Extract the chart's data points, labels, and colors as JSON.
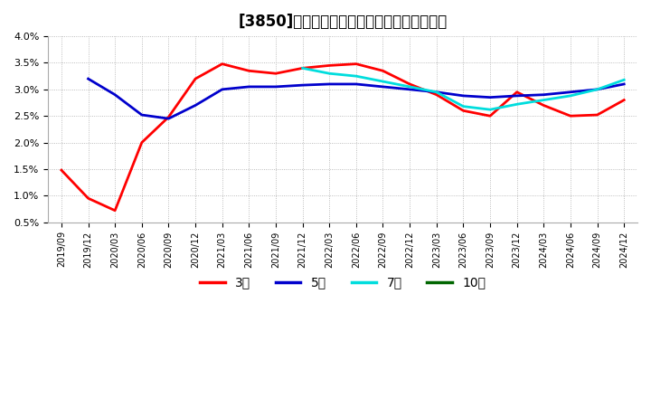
{
  "title": "[3850]　経常利益マージンの標準偏差の推移",
  "ylim": [
    0.005,
    0.04
  ],
  "yticks": [
    0.005,
    0.01,
    0.015,
    0.02,
    0.025,
    0.03,
    0.035,
    0.04
  ],
  "ytick_labels": [
    "0.5%",
    "1.0%",
    "1.5%",
    "2.0%",
    "2.5%",
    "3.0%",
    "3.5%",
    "4.0%"
  ],
  "x_labels": [
    "2019/09",
    "2019/12",
    "2020/03",
    "2020/06",
    "2020/09",
    "2020/12",
    "2021/03",
    "2021/06",
    "2021/09",
    "2021/12",
    "2022/03",
    "2022/06",
    "2022/09",
    "2022/12",
    "2023/03",
    "2023/06",
    "2023/09",
    "2023/12",
    "2024/03",
    "2024/06",
    "2024/09",
    "2024/12"
  ],
  "series": {
    "3年": {
      "color": "#ff0000",
      "values": [
        0.0148,
        0.0095,
        0.0072,
        0.02,
        0.0248,
        0.032,
        0.0348,
        0.0335,
        0.033,
        0.034,
        0.0345,
        0.0348,
        0.0335,
        0.031,
        0.029,
        0.026,
        0.025,
        0.0295,
        0.027,
        0.025,
        0.0252,
        0.028
      ]
    },
    "5年": {
      "color": "#0000cc",
      "values": [
        null,
        0.032,
        0.029,
        0.0252,
        0.0245,
        0.027,
        0.03,
        0.0305,
        0.0305,
        0.0308,
        0.031,
        0.031,
        0.0305,
        0.03,
        0.0295,
        0.0288,
        0.0285,
        0.0288,
        0.029,
        0.0295,
        0.03,
        0.031
      ]
    },
    "7年": {
      "color": "#00dddd",
      "values": [
        null,
        null,
        null,
        null,
        null,
        null,
        null,
        null,
        null,
        0.034,
        0.033,
        0.0325,
        0.0315,
        0.0305,
        0.0295,
        0.0268,
        0.0262,
        0.0272,
        0.028,
        0.0288,
        0.03,
        0.0318
      ]
    },
    "10年": {
      "color": "#006600",
      "values": [
        null,
        null,
        null,
        null,
        null,
        null,
        null,
        null,
        null,
        null,
        null,
        null,
        null,
        null,
        null,
        null,
        null,
        null,
        null,
        null,
        null,
        null
      ]
    }
  },
  "legend_labels": [
    "3年",
    "5年",
    "7年",
    "10年"
  ],
  "legend_colors": [
    "#ff0000",
    "#0000cc",
    "#00dddd",
    "#006600"
  ],
  "background_color": "#ffffff",
  "grid_color": "#aaaaaa",
  "title_fontsize": 12,
  "tick_fontsize": 8
}
